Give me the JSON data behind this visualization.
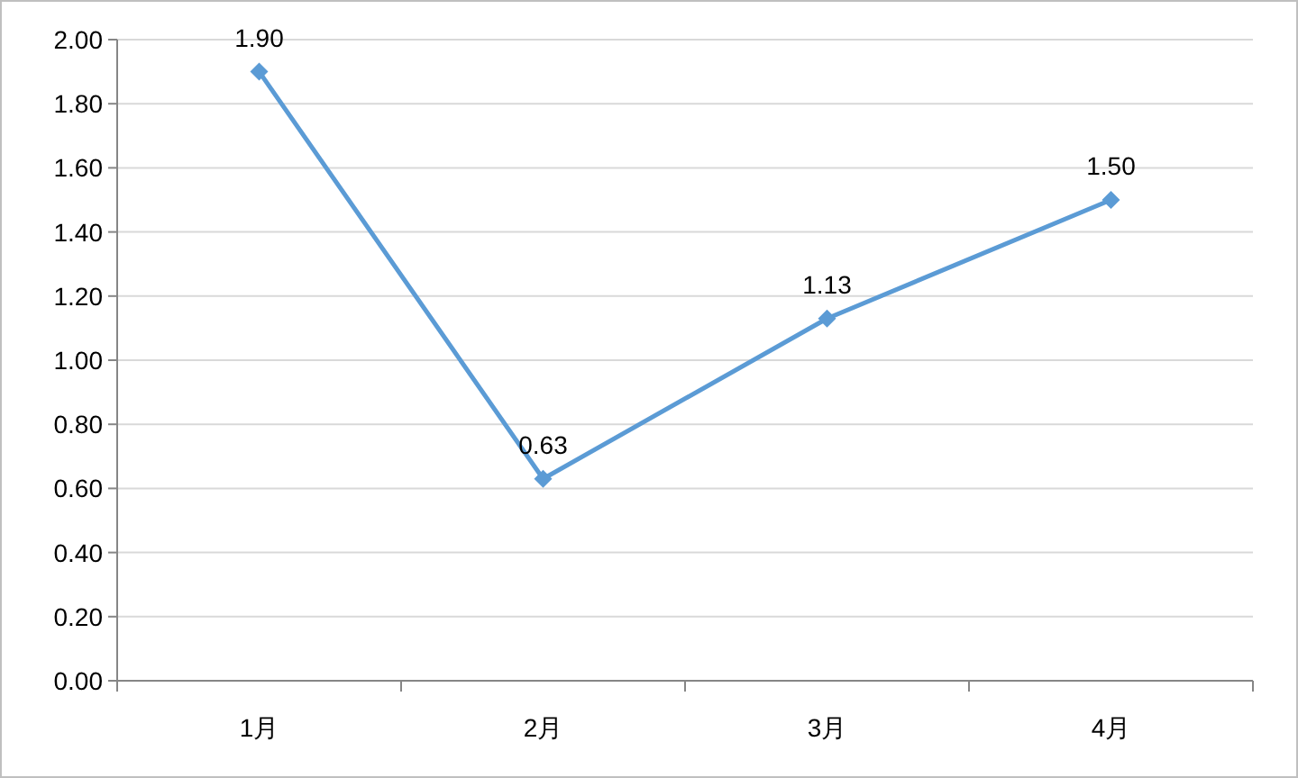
{
  "chart_data": {
    "type": "line",
    "categories": [
      "1月",
      "2月",
      "3月",
      "4月"
    ],
    "values": [
      1.9,
      0.63,
      1.13,
      1.5
    ],
    "value_labels": [
      "1.90",
      "0.63",
      "1.13",
      "1.50"
    ],
    "color": "#5b9bd5",
    "marker": "diamond",
    "line_style": "solid",
    "grid": "y",
    "ylim": [
      0,
      2
    ],
    "yticks": [
      {
        "value": 0,
        "label": "0.00"
      },
      {
        "value": 0.2,
        "label": "0.20"
      },
      {
        "value": 0.4,
        "label": "0.40"
      },
      {
        "value": 0.6,
        "label": "0.60"
      },
      {
        "value": 0.8,
        "label": "0.80"
      },
      {
        "value": 1.0,
        "label": "1.00"
      },
      {
        "value": 1.2,
        "label": "1.20"
      },
      {
        "value": 1.4,
        "label": "1.40"
      },
      {
        "value": 1.6,
        "label": "1.60"
      },
      {
        "value": 1.8,
        "label": "1.80"
      },
      {
        "value": 2.0,
        "label": "2.00"
      }
    ]
  }
}
